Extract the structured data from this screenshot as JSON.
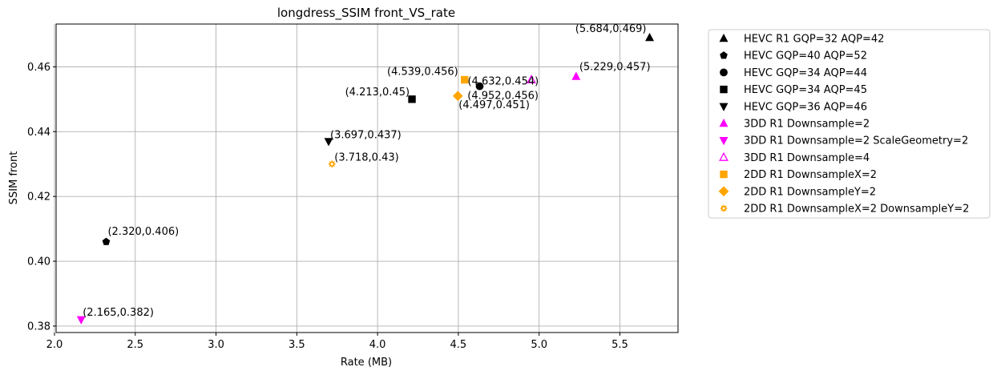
{
  "chart_data": {
    "type": "scatter",
    "title": "longdress_SSIM front_VS_rate",
    "xlabel": "Rate (MB)",
    "ylabel": "SSIM front",
    "xlim": [
      2.01,
      5.86
    ],
    "ylim": [
      0.378,
      0.4732
    ],
    "xticks": [
      "2.0",
      "2.5",
      "3.0",
      "3.5",
      "4.0",
      "4.5",
      "5.0",
      "5.5"
    ],
    "yticks": [
      "0.38",
      "0.40",
      "0.42",
      "0.44",
      "0.46"
    ],
    "grid": true,
    "legend_position": "outside right",
    "series": [
      {
        "name": "HEVC R1 GQP=32 AQP=42",
        "marker": "triangle-up",
        "color": "#000000",
        "filled": true,
        "points": [
          {
            "x": 5.684,
            "y": 0.469,
            "label": "(5.684,0.469)"
          }
        ]
      },
      {
        "name": "HEVC GQP=40 AQP=52",
        "marker": "pentagon",
        "color": "#000000",
        "filled": true,
        "points": [
          {
            "x": 2.32,
            "y": 0.406,
            "label": "(2.320,0.406)"
          }
        ]
      },
      {
        "name": "HEVC GQP=34 AQP=44",
        "marker": "circle",
        "color": "#000000",
        "filled": true,
        "points": [
          {
            "x": 4.632,
            "y": 0.454,
            "label": "(4.632,0.454)"
          }
        ]
      },
      {
        "name": "HEVC GQP=34 AQP=45",
        "marker": "square",
        "color": "#000000",
        "filled": true,
        "points": [
          {
            "x": 4.213,
            "y": 0.45,
            "label": "(4.213,0.45)"
          }
        ]
      },
      {
        "name": "HEVC GQP=36 AQP=46",
        "marker": "triangle-down",
        "color": "#000000",
        "filled": true,
        "points": [
          {
            "x": 3.697,
            "y": 0.437,
            "label": "(3.697,0.437)"
          }
        ]
      },
      {
        "name": "3DD R1 Downsample=2",
        "marker": "triangle-up",
        "color": "#ff00ff",
        "filled": true,
        "points": [
          {
            "x": 5.229,
            "y": 0.457,
            "label": "(5.229,0.457)"
          }
        ]
      },
      {
        "name": "3DD R1 Downsample=2 ScaleGeometry=2",
        "marker": "triangle-down",
        "color": "#ff00ff",
        "filled": true,
        "points": [
          {
            "x": 2.165,
            "y": 0.382,
            "label": "(2.165,0.382)"
          }
        ]
      },
      {
        "name": "3DD R1 Downsample=4",
        "marker": "triangle-up",
        "color": "#ff00ff",
        "filled": false,
        "points": [
          {
            "x": 4.952,
            "y": 0.456,
            "label": "(4.952,0.456)"
          }
        ]
      },
      {
        "name": "2DD R1 DownsampleX=2",
        "marker": "square",
        "color": "#ffa500",
        "filled": true,
        "points": [
          {
            "x": 4.539,
            "y": 0.456,
            "label": "(4.539,0.456)"
          }
        ]
      },
      {
        "name": "2DD R1 DownsampleY=2",
        "marker": "diamond",
        "color": "#ffa500",
        "filled": true,
        "points": [
          {
            "x": 4.497,
            "y": 0.451,
            "label": "(4.497,0.451)"
          }
        ]
      },
      {
        "name": "2DD R1 DownsampleX=2 DownsampleY=2",
        "marker": "sun",
        "color": "#ffa500",
        "filled": true,
        "points": [
          {
            "x": 3.718,
            "y": 0.43,
            "label": "(3.718,0.43)"
          }
        ]
      }
    ]
  }
}
